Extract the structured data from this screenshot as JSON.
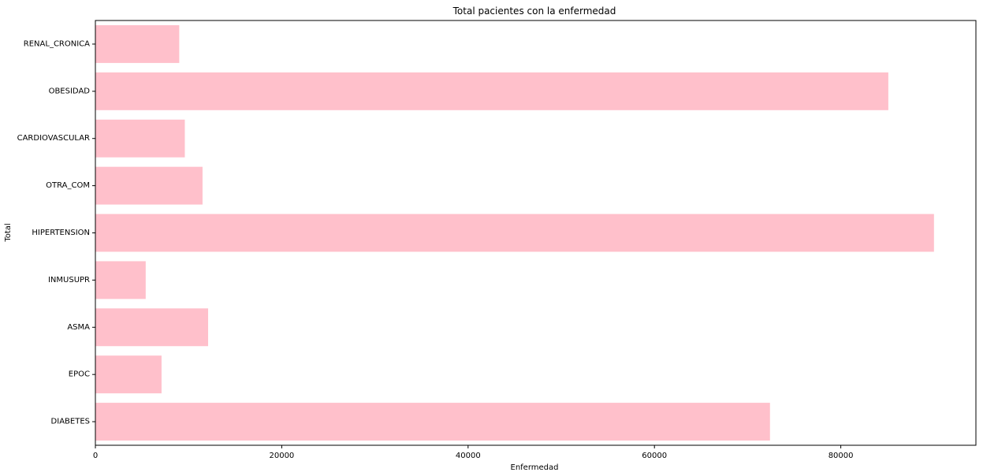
{
  "chart_data": {
    "type": "bar",
    "orientation": "horizontal",
    "title": "Total pacientes con la enfermedad",
    "xlabel": "Enfermedad",
    "ylabel": "Total",
    "categories": [
      "DIABETES",
      "EPOC",
      "ASMA",
      "INMUSUPR",
      "HIPERTENSION",
      "OTRA_COM",
      "CARDIOVASCULAR",
      "OBESIDAD",
      "RENAL_CRONICA"
    ],
    "values": [
      72400,
      7100,
      12100,
      5400,
      90000,
      11500,
      9600,
      85100,
      9000
    ],
    "xlim": [
      0,
      94500
    ],
    "xticks": [
      0,
      20000,
      40000,
      60000,
      80000
    ],
    "grid": false,
    "bar_color": "#ffc0cb"
  }
}
